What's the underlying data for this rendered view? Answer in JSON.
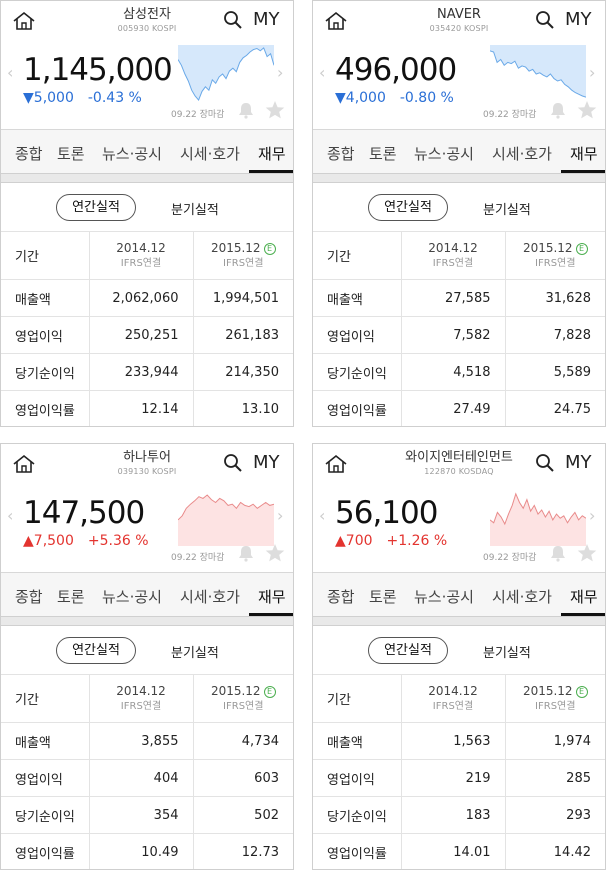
{
  "colors": {
    "down": "#2a6fd6",
    "up": "#e3342f",
    "estimate_badge": "#4caf50"
  },
  "icons": {
    "home": "home-icon",
    "search": "search-icon",
    "bell": "bell-icon",
    "star": "star-icon",
    "prev": "chevron-left-icon",
    "next": "chevron-right-icon"
  },
  "panels": [
    {
      "name": "삼성전자",
      "code": "005930 KOSPI",
      "price": "1,145,000",
      "change_arrow": "▼",
      "change_value": "5,000",
      "change_pct": "-0.43 %",
      "direction": "down",
      "date_status": "09.22 장마감",
      "my": "MY",
      "tabs": [
        "종합",
        "토론",
        "뉴스·공시",
        "시세·호가",
        "재무"
      ],
      "period_annual": "연간실적",
      "period_quarter": "분기실적",
      "table": {
        "header_label": "기간",
        "col1_year": "2014.12",
        "col1_std": "IFRS연결",
        "col2_year": "2015.12",
        "col2_std": "IFRS연결",
        "estimate_mark": "E",
        "rows": [
          {
            "label": "매출액",
            "v1": "2,062,060",
            "v2": "1,994,501"
          },
          {
            "label": "영업이익",
            "v1": "250,251",
            "v2": "261,183"
          },
          {
            "label": "당기순이익",
            "v1": "233,944",
            "v2": "214,350"
          },
          {
            "label": "영업이익률",
            "v1": "12.14",
            "v2": "13.10"
          }
        ]
      }
    },
    {
      "name": "NAVER",
      "code": "035420 KOSPI",
      "price": "496,000",
      "change_arrow": "▼",
      "change_value": "4,000",
      "change_pct": "-0.80 %",
      "direction": "down",
      "date_status": "09.22 장마감",
      "my": "MY",
      "tabs": [
        "종합",
        "토론",
        "뉴스·공시",
        "시세·호가",
        "재무"
      ],
      "period_annual": "연간실적",
      "period_quarter": "분기실적",
      "table": {
        "header_label": "기간",
        "col1_year": "2014.12",
        "col1_std": "IFRS연결",
        "col2_year": "2015.12",
        "col2_std": "IFRS연결",
        "estimate_mark": "E",
        "rows": [
          {
            "label": "매출액",
            "v1": "27,585",
            "v2": "31,628"
          },
          {
            "label": "영업이익",
            "v1": "7,582",
            "v2": "7,828"
          },
          {
            "label": "당기순이익",
            "v1": "4,518",
            "v2": "5,589"
          },
          {
            "label": "영업이익률",
            "v1": "27.49",
            "v2": "24.75"
          }
        ]
      }
    },
    {
      "name": "하나투어",
      "code": "039130 KOSPI",
      "price": "147,500",
      "change_arrow": "▲",
      "change_value": "7,500",
      "change_pct": "+5.36 %",
      "direction": "up",
      "date_status": "09.22 장마감",
      "my": "MY",
      "tabs": [
        "종합",
        "토론",
        "뉴스·공시",
        "시세·호가",
        "재무"
      ],
      "period_annual": "연간실적",
      "period_quarter": "분기실적",
      "table": {
        "header_label": "기간",
        "col1_year": "2014.12",
        "col1_std": "IFRS연결",
        "col2_year": "2015.12",
        "col2_std": "IFRS연결",
        "estimate_mark": "E",
        "rows": [
          {
            "label": "매출액",
            "v1": "3,855",
            "v2": "4,734"
          },
          {
            "label": "영업이익",
            "v1": "404",
            "v2": "603"
          },
          {
            "label": "당기순이익",
            "v1": "354",
            "v2": "502"
          },
          {
            "label": "영업이익률",
            "v1": "10.49",
            "v2": "12.73"
          }
        ]
      }
    },
    {
      "name": "와이지엔터테인먼트",
      "code": "122870 KOSDAQ",
      "price": "56,100",
      "change_arrow": "▲",
      "change_value": "700",
      "change_pct": "+1.26 %",
      "direction": "up",
      "date_status": "09.22 장마감",
      "my": "MY",
      "tabs": [
        "종합",
        "토론",
        "뉴스·공시",
        "시세·호가",
        "재무"
      ],
      "period_annual": "연간실적",
      "period_quarter": "분기실적",
      "table": {
        "header_label": "기간",
        "col1_year": "2014.12",
        "col1_std": "IFRS연결",
        "col2_year": "2015.12",
        "col2_std": "IFRS연결",
        "estimate_mark": "E",
        "rows": [
          {
            "label": "매출액",
            "v1": "1,563",
            "v2": "1,974"
          },
          {
            "label": "영업이익",
            "v1": "219",
            "v2": "285"
          },
          {
            "label": "당기순이익",
            "v1": "183",
            "v2": "293"
          },
          {
            "label": "영업이익률",
            "v1": "14.01",
            "v2": "14.42"
          }
        ]
      }
    }
  ]
}
